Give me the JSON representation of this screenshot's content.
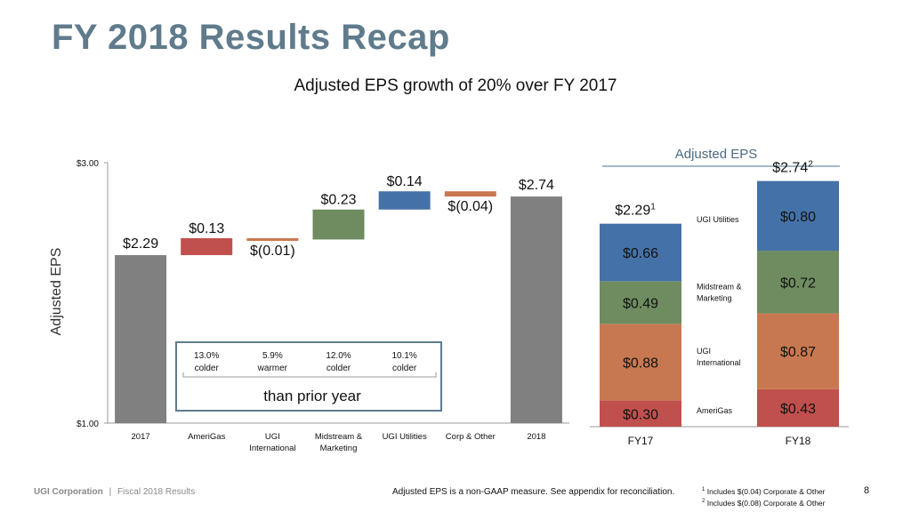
{
  "title": "FY 2018 Results Recap",
  "subtitle": "Adjusted EPS growth of 20% over FY 2017",
  "chart_data": [
    {
      "type": "waterfall",
      "ylabel": "Adjusted EPS",
      "ylim": [
        1.0,
        3.0
      ],
      "y_tick_labels": [
        "$3.00",
        "$1.00"
      ],
      "y_ticks": [
        3.0,
        1.0
      ],
      "grid": false,
      "categories": [
        "2017",
        "AmeriGas",
        "UGI International",
        "Midstream & Marketing",
        "UGI Utilities",
        "Corp & Other",
        "2018"
      ],
      "category_lines": [
        [
          "2017"
        ],
        [
          "AmeriGas"
        ],
        [
          "UGI",
          "International"
        ],
        [
          "Midstream &",
          "Marketing"
        ],
        [
          "UGI Utilities"
        ],
        [
          "Corp & Other"
        ],
        [
          "2018"
        ]
      ],
      "values": [
        2.29,
        0.13,
        -0.01,
        0.23,
        0.14,
        -0.04,
        2.74
      ],
      "measure": [
        "total",
        "relative",
        "relative",
        "relative",
        "relative",
        "relative",
        "total"
      ],
      "data_labels": [
        "$2.29",
        "$0.13",
        "$(0.01)",
        "$0.23",
        "$0.14",
        "$(0.04)",
        "$2.74"
      ],
      "colors": [
        "#808080",
        "#c0504d",
        "#c87850",
        "#6e8c5f",
        "#4472a8",
        "#c87850",
        "#808080"
      ],
      "annotation": {
        "items": [
          {
            "value": "13.0%",
            "label": "colder"
          },
          {
            "value": "5.9%",
            "label": "warmer"
          },
          {
            "value": "12.0%",
            "label": "colder"
          },
          {
            "value": "10.1%",
            "label": "colder"
          }
        ],
        "caption": "than prior year"
      }
    },
    {
      "type": "stacked_bar",
      "title": "Adjusted EPS",
      "categories": [
        "FY17",
        "FY18"
      ],
      "totals": [
        2.29,
        2.74
      ],
      "total_labels": [
        "$2.29",
        "$2.74"
      ],
      "total_footnotes": [
        "1",
        "2"
      ],
      "series": [
        {
          "name": "AmeriGas",
          "name_lines": [
            "AmeriGas"
          ],
          "values": [
            0.3,
            0.43
          ],
          "labels": [
            "$0.30",
            "$0.43"
          ],
          "color": "#c0504d"
        },
        {
          "name": "UGI International",
          "name_lines": [
            "UGI",
            "International"
          ],
          "values": [
            0.88,
            0.87
          ],
          "labels": [
            "$0.88",
            "$0.87"
          ],
          "color": "#c87850"
        },
        {
          "name": "Midstream & Marketing",
          "name_lines": [
            "Midstream &",
            "Marketing"
          ],
          "values": [
            0.49,
            0.72
          ],
          "labels": [
            "$0.49",
            "$0.72"
          ],
          "color": "#6e8c5f"
        },
        {
          "name": "UGI Utilities",
          "name_lines": [
            "UGI Utilities"
          ],
          "values": [
            0.66,
            0.8
          ],
          "labels": [
            "$0.66",
            "$0.80"
          ],
          "color": "#4472a8"
        }
      ]
    }
  ],
  "footer": {
    "company": "UGI Corporation",
    "separator": "|",
    "doc": "Fiscal 2018 Results",
    "note": "Adjusted EPS is a non-GAAP measure. See appendix for reconciliation.",
    "footnotes": [
      {
        "mark": "1",
        "text": "Includes $(0.04) Corporate & Other"
      },
      {
        "mark": "2",
        "text": "Includes $(0.08) Corporate & Other"
      }
    ],
    "page": "8"
  }
}
